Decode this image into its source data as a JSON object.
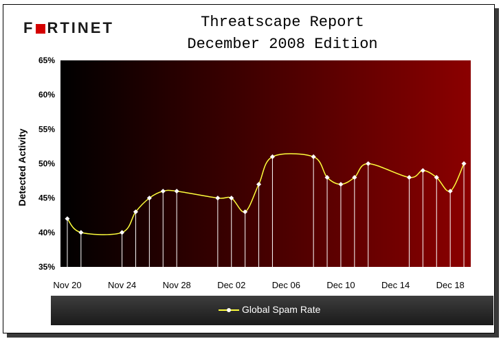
{
  "header": {
    "logo_text": "FORTINET",
    "title_line1": "Threatscape Report",
    "title_line2": "December 2008 Edition"
  },
  "legend": {
    "label": "Global Spam Rate"
  },
  "colors": {
    "line": "#ffff3c",
    "plot_left": "#000000",
    "plot_right": "#8b0000"
  },
  "chart_data": {
    "type": "line",
    "title": "",
    "xlabel": "",
    "ylabel": "Detected Activity",
    "ylim": [
      35,
      65
    ],
    "xlim": [
      0,
      30
    ],
    "yticks": [
      "35%",
      "40%",
      "45%",
      "50%",
      "55%",
      "60%",
      "65%"
    ],
    "xticks": [
      {
        "day": 0,
        "label": "Nov 20"
      },
      {
        "day": 4,
        "label": "Nov 24"
      },
      {
        "day": 8,
        "label": "Nov 28"
      },
      {
        "day": 12,
        "label": "Dec 02"
      },
      {
        "day": 16,
        "label": "Dec 06"
      },
      {
        "day": 20,
        "label": "Dec 10"
      },
      {
        "day": 24,
        "label": "Dec 14"
      },
      {
        "day": 28,
        "label": "Dec 18"
      }
    ],
    "series": [
      {
        "name": "Global Spam Rate",
        "points": [
          {
            "day": 0.5,
            "value": 42
          },
          {
            "day": 1.5,
            "value": 40
          },
          {
            "day": 4.5,
            "value": 40
          },
          {
            "day": 5.5,
            "value": 43
          },
          {
            "day": 6.5,
            "value": 45
          },
          {
            "day": 7.5,
            "value": 46
          },
          {
            "day": 8.5,
            "value": 46
          },
          {
            "day": 11.5,
            "value": 45
          },
          {
            "day": 12.5,
            "value": 45
          },
          {
            "day": 13.5,
            "value": 43
          },
          {
            "day": 14.5,
            "value": 47
          },
          {
            "day": 15.5,
            "value": 51
          },
          {
            "day": 18.5,
            "value": 51
          },
          {
            "day": 19.5,
            "value": 48
          },
          {
            "day": 20.5,
            "value": 47
          },
          {
            "day": 21.5,
            "value": 48
          },
          {
            "day": 22.5,
            "value": 50
          },
          {
            "day": 25.5,
            "value": 48
          },
          {
            "day": 26.5,
            "value": 49
          },
          {
            "day": 27.5,
            "value": 48
          },
          {
            "day": 28.5,
            "value": 46
          },
          {
            "day": 29.5,
            "value": 50
          }
        ]
      }
    ]
  }
}
